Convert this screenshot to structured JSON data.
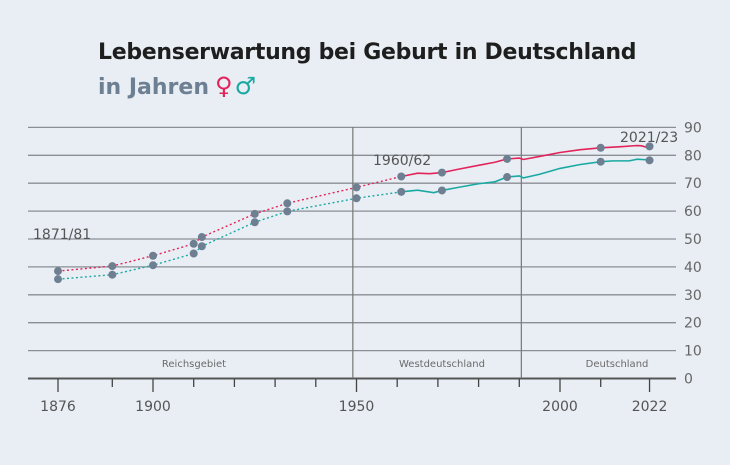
{
  "chart_data": {
    "type": "line",
    "title": "Lebenserwartung bei Geburt in Deutschland",
    "subtitle": "in Jahren",
    "legend": [
      {
        "symbol": "♀",
        "name": "Frauen",
        "color": "#e2245a"
      },
      {
        "symbol": "♂",
        "name": "Männer",
        "color": "#1aa9a2"
      }
    ],
    "ylim": [
      0,
      90
    ],
    "yticks": [
      0,
      10,
      20,
      30,
      40,
      50,
      60,
      70,
      80,
      90
    ],
    "xticks": [
      1876,
      1890,
      1900,
      1910,
      1920,
      1930,
      1940,
      1950,
      1960,
      1970,
      1980,
      1990,
      2000,
      2010,
      2022
    ],
    "xtick_labels": [
      1876,
      1900,
      1950,
      2000,
      2022
    ],
    "regions": [
      {
        "label": "Reichsgebiet",
        "from": 1871,
        "to": 1949
      },
      {
        "label": "Westdeutschland",
        "from": 1949,
        "to": 1990.5
      },
      {
        "label": "Deutschland",
        "from": 1990.5,
        "to": 2024
      }
    ],
    "annotations": [
      "1871/81",
      "1960/62",
      "2021/23"
    ],
    "series": [
      {
        "name": "Frauen",
        "color": "#e2245a",
        "points": {
          "x": [
            1876,
            1890,
            1900,
            1910,
            1912,
            1925,
            1933,
            1950,
            1961,
            1971,
            1987,
            2010,
            2022
          ],
          "y": [
            38.5,
            40.3,
            44,
            48.3,
            50.7,
            59,
            62.8,
            68.5,
            72.4,
            73.8,
            78.7,
            82.7,
            83.2
          ]
        },
        "line": {
          "x": [
            1961,
            1965,
            1968,
            1971,
            1975,
            1980,
            1984,
            1987,
            1990,
            1991,
            1995,
            2000,
            2005,
            2010,
            2015,
            2019,
            2020,
            2021,
            2022
          ],
          "y": [
            72.4,
            73.6,
            73.4,
            73.8,
            75,
            76.4,
            77.5,
            78.7,
            79,
            78.5,
            79.6,
            81,
            82,
            82.7,
            83.1,
            83.5,
            83.4,
            83,
            83.2
          ]
        }
      },
      {
        "name": "Männer",
        "color": "#1aa9a2",
        "points": {
          "x": [
            1876,
            1890,
            1900,
            1910,
            1912,
            1925,
            1933,
            1950,
            1961,
            1971,
            1987,
            2010,
            2022
          ],
          "y": [
            35.6,
            37.2,
            40.6,
            44.8,
            47.4,
            56,
            59.9,
            64.6,
            66.9,
            67.4,
            72.2,
            77.7,
            78.2
          ]
        },
        "line": {
          "x": [
            1961,
            1965,
            1969,
            1971,
            1975,
            1980,
            1984,
            1987,
            1990,
            1991,
            1995,
            2000,
            2005,
            2010,
            2013,
            2017,
            2019,
            2021,
            2022
          ],
          "y": [
            66.9,
            67.5,
            66.6,
            67.4,
            68.5,
            69.8,
            70.5,
            72.2,
            72.6,
            71.9,
            73.2,
            75.3,
            76.7,
            77.7,
            78,
            78,
            78.6,
            78.4,
            78.2
          ]
        }
      }
    ]
  }
}
